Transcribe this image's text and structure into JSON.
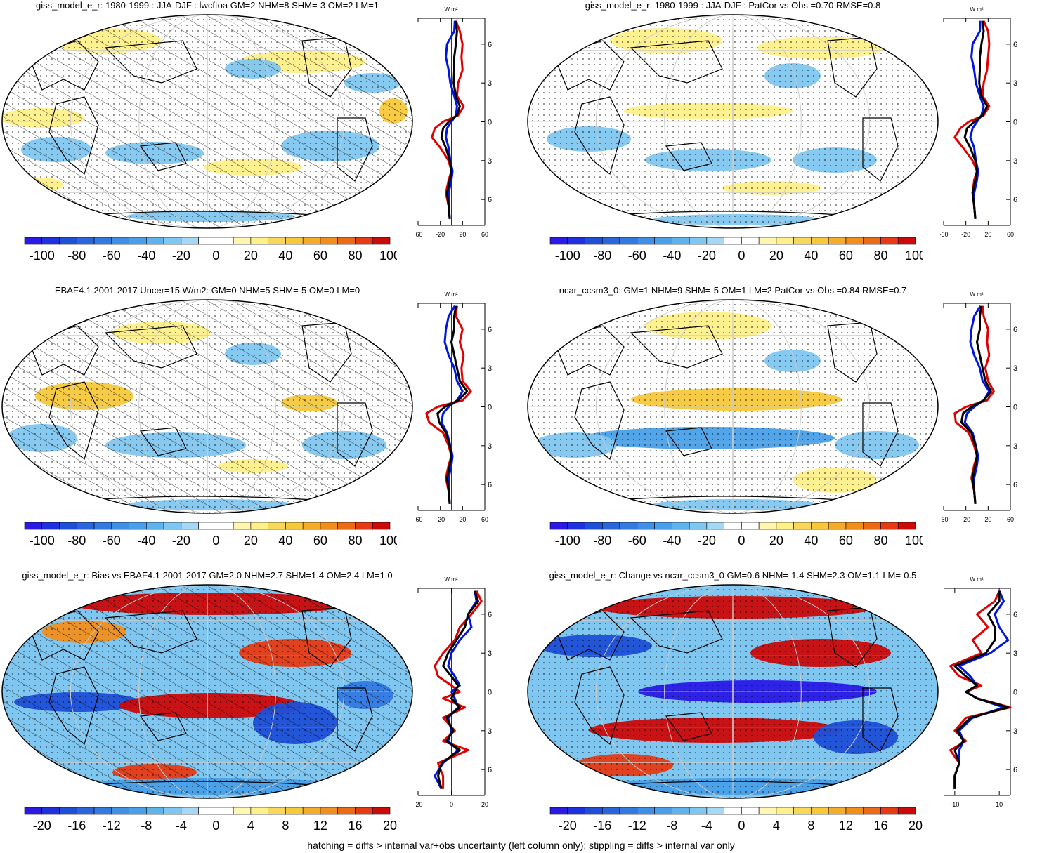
{
  "footer_note": "hatching = diffs > internal var+obs uncertainty (left column only); stippling = diffs > internal var only",
  "profile_unit": "W m²",
  "colors": {
    "blue1": "#2b19e6",
    "blue2": "#1f4fd6",
    "blue3": "#3479e0",
    "blue4": "#4aa0e8",
    "blue5": "#7fc6f0",
    "yellow1": "#fff08a",
    "yellow2": "#f7c83a",
    "orange": "#f28f1a",
    "red1": "#e63a12",
    "red2": "#cc0a0a",
    "line_red": "#e00000",
    "line_blue": "#0015e0",
    "line_black": "#000000"
  },
  "panels": [
    {
      "id": "p1",
      "title": "giss_model_e_r: 1980-1999 : JJA-DJF : lwcftoa GM=2 NHM=8 SHM=-3 OM=2 LM=1"
    },
    {
      "id": "p2",
      "title": "giss_model_e_r: 1980-1999 : JJA-DJF : PatCor vs Obs =0.70 RMSE=0.8"
    },
    {
      "id": "p3",
      "title": "EBAF4.1 2001-2017 Uncer=15 W/m2: GM=0 NHM=5 SHM=-5 OM=0 LM=0"
    },
    {
      "id": "p4",
      "title": "ncar_ccsm3_0: GM=1 NHM=9 SHM=-5 OM=1 LM=2 PatCor vs Obs =0.84 RMSE=0.7"
    },
    {
      "id": "p5",
      "title": "giss_model_e_r: Bias vs EBAF4.1 2001-2017 GM=2.0 NHM=2.7 SHM=1.4 OM=2.4 LM=1.0"
    },
    {
      "id": "p6",
      "title": "giss_model_e_r: Change vs ncar_ccsm3_0 GM=0.6 NHM=-1.4 SHM=2.3 OM=1.1 LM=-0.5"
    }
  ],
  "chart_data": [
    {
      "type": "heatmap",
      "title": "giss_model_e_r: 1980-1999 : JJA-DJF : lwcftoa GM=2 NHM=8 SHM=-3 OM=2 LM=1",
      "colorbar_ticks": [
        "-100",
        "-80",
        "-60",
        "-40",
        "-20",
        "0",
        "20",
        "40",
        "60",
        "80",
        "100"
      ],
      "profile": {
        "type": "line",
        "xlim": [
          -60,
          60
        ],
        "x_ticks": [
          "-60",
          "-20",
          "20",
          "60"
        ],
        "y_ticks": [
          "60N",
          "30N",
          "0",
          "30S",
          "60S"
        ],
        "ylim": [
          -80,
          80
        ],
        "lat": [
          78,
          70,
          60,
          50,
          40,
          30,
          20,
          12,
          5,
          0,
          -5,
          -12,
          -20,
          -30,
          -38,
          -45,
          -55,
          -65,
          -75
        ],
        "series": [
          {
            "name": "red",
            "values": [
              8,
              15,
              20,
              18,
              20,
              12,
              10,
              22,
              12,
              -15,
              -30,
              -35,
              -20,
              -5,
              0,
              -5,
              -10,
              -5,
              -3
            ]
          },
          {
            "name": "blue",
            "values": [
              6,
              5,
              -8,
              -10,
              -5,
              -2,
              5,
              10,
              8,
              0,
              -8,
              -10,
              -5,
              -2,
              2,
              0,
              -5,
              -5,
              -3
            ]
          },
          {
            "name": "black",
            "values": [
              7,
              10,
              8,
              5,
              5,
              4,
              8,
              15,
              10,
              -5,
              -15,
              -18,
              -10,
              -3,
              0,
              -3,
              -8,
              -5,
              -3
            ]
          }
        ]
      }
    },
    {
      "type": "heatmap",
      "title": "giss_model_e_r: 1980-1999 : JJA-DJF : PatCor vs Obs =0.70 RMSE=0.8",
      "colorbar_ticks": [
        "-100",
        "-80",
        "-60",
        "-40",
        "-20",
        "0",
        "20",
        "40",
        "60",
        "80",
        "100"
      ],
      "profile": {
        "type": "line",
        "xlim": [
          -60,
          60
        ],
        "x_ticks": [
          "-60",
          "-20",
          "20",
          "60"
        ],
        "y_ticks": [
          "60N",
          "30N",
          "0",
          "30S",
          "60S"
        ],
        "ylim": [
          -80,
          80
        ],
        "lat": [
          78,
          70,
          60,
          50,
          40,
          30,
          20,
          12,
          5,
          0,
          -5,
          -12,
          -20,
          -30,
          -38,
          -45,
          -55,
          -65,
          -75
        ],
        "series": [
          {
            "name": "red",
            "values": [
              12,
              20,
              22,
              20,
              18,
              12,
              10,
              22,
              12,
              -15,
              -30,
              -40,
              -25,
              -8,
              0,
              -5,
              -8,
              -5,
              -3
            ]
          },
          {
            "name": "blue",
            "values": [
              6,
              5,
              -8,
              -10,
              -5,
              -2,
              5,
              12,
              8,
              0,
              -8,
              -12,
              -5,
              -2,
              2,
              0,
              -5,
              -5,
              -3
            ]
          },
          {
            "name": "black",
            "values": [
              10,
              12,
              8,
              5,
              5,
              4,
              8,
              18,
              10,
              -5,
              -18,
              -22,
              -12,
              -3,
              0,
              -3,
              -8,
              -5,
              -3
            ]
          }
        ]
      }
    },
    {
      "type": "heatmap",
      "title": "EBAF4.1 2001-2017 Uncer=15 W/m2: GM=0 NHM=5 SHM=-5 OM=0 LM=0",
      "colorbar_ticks": [
        "-100",
        "-80",
        "-60",
        "-40",
        "-20",
        "0",
        "20",
        "40",
        "60",
        "80",
        "100"
      ],
      "profile": {
        "type": "line",
        "xlim": [
          -60,
          60
        ],
        "x_ticks": [
          "-60",
          "-20",
          "20",
          "60"
        ],
        "y_ticks": [
          "60N",
          "30N",
          "0",
          "30S",
          "60S"
        ],
        "ylim": [
          -80,
          80
        ],
        "lat": [
          78,
          70,
          60,
          50,
          40,
          30,
          20,
          12,
          5,
          0,
          -5,
          -12,
          -20,
          -30,
          -38,
          -45,
          -55,
          -65,
          -75
        ],
        "series": [
          {
            "name": "red",
            "values": [
              10,
              8,
              20,
              15,
              22,
              18,
              20,
              35,
              20,
              -25,
              -45,
              -40,
              -15,
              -5,
              0,
              -5,
              -10,
              -5,
              -3
            ]
          },
          {
            "name": "blue",
            "values": [
              6,
              -5,
              -10,
              -12,
              -5,
              5,
              10,
              20,
              10,
              -5,
              -15,
              -18,
              -8,
              -2,
              2,
              0,
              -5,
              -5,
              -3
            ]
          },
          {
            "name": "black",
            "values": [
              8,
              5,
              5,
              0,
              5,
              10,
              15,
              28,
              12,
              -12,
              -25,
              -22,
              -10,
              -3,
              0,
              -3,
              -8,
              -5,
              -3
            ]
          }
        ]
      }
    },
    {
      "type": "heatmap",
      "title": "ncar_ccsm3_0: GM=1 NHM=9 SHM=-5 OM=1 LM=2 PatCor vs Obs =0.84 RMSE=0.7",
      "colorbar_ticks": [
        "-100",
        "-80",
        "-60",
        "-40",
        "-20",
        "0",
        "20",
        "40",
        "60",
        "80",
        "100"
      ],
      "profile": {
        "type": "line",
        "xlim": [
          -60,
          60
        ],
        "x_ticks": [
          "-60",
          "-20",
          "20",
          "60"
        ],
        "y_ticks": [
          "60N",
          "30N",
          "0",
          "30S",
          "60S"
        ],
        "ylim": [
          -80,
          80
        ],
        "lat": [
          78,
          70,
          60,
          50,
          40,
          30,
          20,
          12,
          5,
          0,
          -5,
          -12,
          -20,
          -30,
          -38,
          -45,
          -55,
          -65,
          -75
        ],
        "series": [
          {
            "name": "red",
            "values": [
              10,
              12,
              20,
              18,
              22,
              15,
              20,
              30,
              18,
              -20,
              -40,
              -38,
              -15,
              -5,
              0,
              -5,
              -10,
              -5,
              -3
            ]
          },
          {
            "name": "blue",
            "values": [
              6,
              -5,
              -10,
              -12,
              -5,
              5,
              10,
              22,
              12,
              -5,
              -18,
              -22,
              -8,
              -2,
              2,
              0,
              -5,
              -5,
              -3
            ]
          },
          {
            "name": "black",
            "values": [
              8,
              5,
              5,
              0,
              5,
              10,
              15,
              25,
              12,
              -10,
              -25,
              -28,
              -10,
              -3,
              0,
              -3,
              -8,
              -5,
              -3
            ]
          }
        ]
      }
    },
    {
      "type": "heatmap",
      "title": "giss_model_e_r: Bias vs EBAF4.1 2001-2017 GM=2.0 NHM=2.7 SHM=1.4 OM=2.4 LM=1.0",
      "colorbar_ticks": [
        "-20",
        "-16",
        "-12",
        "-8",
        "-4",
        "0",
        "4",
        "8",
        "12",
        "16",
        "20"
      ],
      "profile": {
        "type": "line",
        "xlim": [
          -20,
          20
        ],
        "x_ticks": [
          "-20",
          "0",
          "20"
        ],
        "y_ticks": [
          "60N",
          "30N",
          "0",
          "30S",
          "60S"
        ],
        "ylim": [
          -80,
          80
        ],
        "lat": [
          78,
          70,
          60,
          50,
          40,
          30,
          20,
          12,
          5,
          0,
          -5,
          -12,
          -20,
          -30,
          -38,
          -45,
          -55,
          -65,
          -75
        ],
        "series": [
          {
            "name": "red",
            "values": [
              15,
              18,
              12,
              5,
              2,
              -5,
              -10,
              -8,
              0,
              5,
              -5,
              8,
              -5,
              2,
              -5,
              10,
              -8,
              -5,
              -5
            ]
          },
          {
            "name": "blue",
            "values": [
              14,
              15,
              10,
              12,
              5,
              0,
              -2,
              2,
              5,
              0,
              2,
              4,
              -2,
              0,
              -2,
              4,
              -5,
              -10,
              -6
            ]
          },
          {
            "name": "black",
            "values": [
              14,
              16,
              10,
              8,
              3,
              -2,
              -5,
              0,
              4,
              2,
              0,
              5,
              -3,
              1,
              -3,
              5,
              -6,
              -8,
              -6
            ]
          }
        ]
      }
    },
    {
      "type": "heatmap",
      "title": "giss_model_e_r: Change vs ncar_ccsm3_0 GM=0.6 NHM=-1.4 SHM=2.3 OM=1.1 LM=-0.5",
      "colorbar_ticks": [
        "-20",
        "-16",
        "-12",
        "-8",
        "-4",
        "0",
        "4",
        "8",
        "12",
        "16",
        "20"
      ],
      "profile": {
        "type": "line",
        "xlim": [
          -15,
          15
        ],
        "x_ticks": [
          "-10",
          "10"
        ],
        "y_ticks": [
          "60N",
          "30N",
          "0",
          "30S",
          "60S"
        ],
        "ylim": [
          -80,
          80
        ],
        "lat": [
          78,
          70,
          60,
          50,
          40,
          30,
          20,
          12,
          5,
          0,
          -5,
          -12,
          -20,
          -30,
          -38,
          -45,
          -55,
          -65,
          -75
        ],
        "series": [
          {
            "name": "red",
            "values": [
              10,
              8,
              0,
              5,
              -2,
              2,
              -12,
              -8,
              2,
              -5,
              0,
              15,
              -5,
              -10,
              -5,
              -12,
              -8,
              -10,
              -10
            ]
          },
          {
            "name": "blue",
            "values": [
              10,
              12,
              8,
              10,
              14,
              6,
              -8,
              -3,
              0,
              -5,
              0,
              12,
              -2,
              -8,
              -6,
              -8,
              -8,
              -10,
              -10
            ]
          },
          {
            "name": "black",
            "values": [
              10,
              10,
              5,
              8,
              8,
              4,
              -10,
              -5,
              0,
              -5,
              0,
              14,
              -3,
              -9,
              -6,
              -10,
              -8,
              -10,
              -10
            ]
          }
        ]
      }
    }
  ]
}
